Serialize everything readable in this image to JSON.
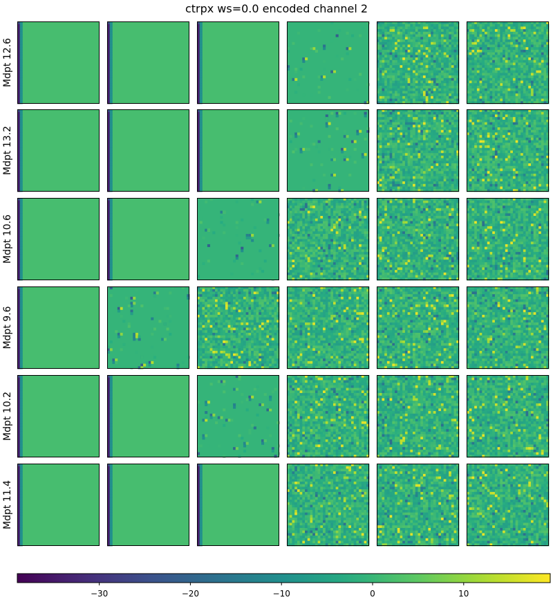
{
  "chart_data": {
    "type": "heatmap",
    "title": "ctrpx ws=0.0 encoded channel 2",
    "row_labels": [
      "Mdpt 12.6",
      "Mdpt 13.2",
      "Mdpt 10.6",
      "Mdpt 9.6",
      "Mdpt 10.2",
      "Mdpt 11.4"
    ],
    "n_cols": 6,
    "grid_size": 32,
    "panel_kinds": [
      [
        "uniform",
        "uniform",
        "uniform",
        "sparse",
        "noise",
        "noise"
      ],
      [
        "uniform",
        "uniform",
        "uniform",
        "sparse",
        "noise",
        "noise"
      ],
      [
        "uniform",
        "uniform",
        "sparse",
        "noise",
        "noise",
        "noise"
      ],
      [
        "uniform",
        "sparse",
        "noise",
        "noise",
        "noise",
        "noise"
      ],
      [
        "uniform",
        "uniform",
        "sparse",
        "noise",
        "noise",
        "noise"
      ],
      [
        "uniform",
        "uniform",
        "uniform",
        "noise",
        "noise",
        "noise"
      ]
    ],
    "uniform_value": 2,
    "edge_values": [
      -34,
      -26
    ],
    "colorbar": {
      "colormap": "viridis",
      "vmin": -39,
      "vmax": 19.5,
      "ticks": [
        -30,
        -20,
        -10,
        0,
        10
      ],
      "tick_labels": [
        "−30",
        "−20",
        "−10",
        "0",
        "10"
      ]
    }
  }
}
